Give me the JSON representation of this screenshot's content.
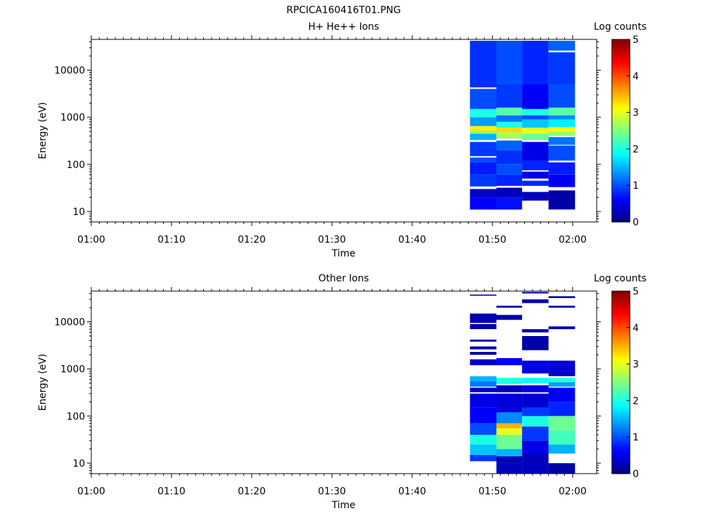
{
  "figure_title": "RPCICA160416T01.PNG",
  "colormap": "jet",
  "chart_data": [
    {
      "type": "heatmap",
      "title": "H+ He++ Ions",
      "xlabel": "Time",
      "ylabel": "Energy (eV)",
      "x_ticks": [
        "01:00",
        "01:10",
        "01:20",
        "01:30",
        "01:40",
        "01:50",
        "02:00"
      ],
      "y_ticks": [
        "10",
        "100",
        "1000",
        "10000"
      ],
      "y_scale": "log",
      "ylim": [
        6,
        45000
      ],
      "xlim_minutes": [
        0,
        63
      ],
      "colorbar": {
        "label": "Log counts",
        "range": [
          0,
          5
        ],
        "ticks": [
          "0",
          "1",
          "2",
          "3",
          "4",
          "5"
        ]
      },
      "columns": [
        {
          "t_start": 47.2,
          "t_end": 50.5,
          "bands": [
            [
              11,
              20,
              0.6
            ],
            [
              20,
              30,
              0.35
            ],
            [
              34,
              60,
              0.9
            ],
            [
              60,
              110,
              0.75
            ],
            [
              110,
              140,
              1.0
            ],
            [
              150,
              300,
              0.9
            ],
            [
              330,
              450,
              1.5
            ],
            [
              450,
              520,
              2.6
            ],
            [
              520,
              650,
              3.2
            ],
            [
              650,
              1000,
              1.4
            ],
            [
              1000,
              1500,
              2.0
            ],
            [
              1500,
              4000,
              1.0
            ],
            [
              4300,
              42000,
              0.85
            ]
          ]
        },
        {
          "t_start": 50.5,
          "t_end": 53.7,
          "bands": [
            [
              11,
              20,
              0.7
            ],
            [
              20,
              32,
              0.3
            ],
            [
              35,
              60,
              0.8
            ],
            [
              60,
              100,
              1.0
            ],
            [
              100,
              200,
              0.85
            ],
            [
              200,
              320,
              1.1
            ],
            [
              350,
              480,
              2.7
            ],
            [
              480,
              600,
              3.3
            ],
            [
              600,
              800,
              2.0
            ],
            [
              800,
              1100,
              1.2
            ],
            [
              1100,
              1600,
              2.3
            ],
            [
              1600,
              5000,
              0.9
            ],
            [
              5000,
              42000,
              1.0
            ]
          ]
        },
        {
          "t_start": 53.7,
          "t_end": 57.0,
          "bands": [
            [
              17,
              26,
              0.3
            ],
            [
              35,
              45,
              0.8
            ],
            [
              50,
              70,
              0.5
            ],
            [
              75,
              120,
              0.8
            ],
            [
              120,
              300,
              0.5
            ],
            [
              330,
              450,
              2.4
            ],
            [
              450,
              600,
              3.0
            ],
            [
              600,
              900,
              1.6
            ],
            [
              900,
              1100,
              1.0
            ],
            [
              1100,
              1500,
              2.0
            ],
            [
              1500,
              5000,
              0.6
            ],
            [
              5000,
              42000,
              0.8
            ]
          ]
        },
        {
          "t_start": 57.0,
          "t_end": 60.3,
          "bands": [
            [
              11,
              28,
              0.2
            ],
            [
              33,
              60,
              0.6
            ],
            [
              60,
              110,
              0.75
            ],
            [
              120,
              250,
              1.0
            ],
            [
              260,
              380,
              1.2
            ],
            [
              400,
              500,
              2.6
            ],
            [
              500,
              620,
              3.1
            ],
            [
              620,
              900,
              1.8
            ],
            [
              900,
              1100,
              1.3
            ],
            [
              1100,
              1600,
              2.3
            ],
            [
              1600,
              5000,
              1.0
            ],
            [
              5000,
              24000,
              0.9
            ],
            [
              26000,
              42000,
              1.1
            ]
          ]
        }
      ]
    },
    {
      "type": "heatmap",
      "title": "Other Ions",
      "xlabel": "Time",
      "ylabel": "Energy (eV)",
      "x_ticks": [
        "01:00",
        "01:10",
        "01:20",
        "01:30",
        "01:40",
        "01:50",
        "02:00"
      ],
      "y_ticks": [
        "10",
        "100",
        "1000",
        "10000"
      ],
      "y_scale": "log",
      "ylim": [
        6,
        45000
      ],
      "xlim_minutes": [
        0,
        63
      ],
      "colorbar": {
        "label": "Log counts",
        "range": [
          0,
          5
        ],
        "ticks": [
          "0",
          "1",
          "2",
          "3",
          "4",
          "5"
        ]
      },
      "columns": [
        {
          "t_start": 47.2,
          "t_end": 50.5,
          "bands": [
            [
              11,
              15,
              0.9
            ],
            [
              15,
              25,
              1.6
            ],
            [
              25,
              40,
              2.0
            ],
            [
              40,
              70,
              1.0
            ],
            [
              70,
              150,
              0.6
            ],
            [
              150,
              300,
              0.5
            ],
            [
              320,
              400,
              0.35
            ],
            [
              420,
              550,
              1.2
            ],
            [
              550,
              700,
              1.5
            ],
            [
              1200,
              1600,
              0.4
            ],
            [
              2000,
              2300,
              0.2
            ],
            [
              2600,
              3000,
              0.2
            ],
            [
              3800,
              4200,
              0.2
            ],
            [
              7000,
              9000,
              0.2
            ],
            [
              9500,
              15000,
              0.25
            ],
            [
              36000,
              38000,
              0.2
            ]
          ]
        },
        {
          "t_start": 50.5,
          "t_end": 53.7,
          "bands": [
            [
              6,
              10,
              0.3
            ],
            [
              10,
              14,
              0.25
            ],
            [
              14,
              20,
              1.5
            ],
            [
              20,
              40,
              2.4
            ],
            [
              40,
              55,
              3.0
            ],
            [
              55,
              70,
              3.5
            ],
            [
              70,
              120,
              1.3
            ],
            [
              120,
              300,
              0.45
            ],
            [
              320,
              450,
              0.3
            ],
            [
              480,
              650,
              2.0
            ],
            [
              1200,
              1700,
              0.6
            ],
            [
              11000,
              14000,
              0.2
            ],
            [
              20000,
              22000,
              0.2
            ]
          ]
        },
        {
          "t_start": 53.7,
          "t_end": 57.0,
          "bands": [
            [
              6,
              16,
              0.3
            ],
            [
              16,
              30,
              0.5
            ],
            [
              30,
              60,
              0.9
            ],
            [
              60,
              100,
              2.0
            ],
            [
              100,
              150,
              0.9
            ],
            [
              150,
              300,
              0.4
            ],
            [
              320,
              450,
              0.5
            ],
            [
              500,
              650,
              1.9
            ],
            [
              800,
              1500,
              0.5
            ],
            [
              2500,
              5000,
              0.2
            ],
            [
              6000,
              7000,
              0.2
            ],
            [
              25000,
              30000,
              0.2
            ],
            [
              40000,
              43000,
              0.2
            ]
          ]
        },
        {
          "t_start": 57.0,
          "t_end": 60.3,
          "bands": [
            [
              6,
              10,
              0.2
            ],
            [
              16,
              25,
              1.5
            ],
            [
              25,
              50,
              2.2
            ],
            [
              50,
              100,
              2.4
            ],
            [
              100,
              200,
              0.8
            ],
            [
              200,
              400,
              0.6
            ],
            [
              420,
              520,
              1.4
            ],
            [
              520,
              650,
              2.1
            ],
            [
              700,
              1500,
              0.4
            ],
            [
              7000,
              8000,
              0.2
            ],
            [
              20000,
              22000,
              0.2
            ],
            [
              32000,
              35000,
              0.2
            ]
          ]
        }
      ]
    }
  ]
}
